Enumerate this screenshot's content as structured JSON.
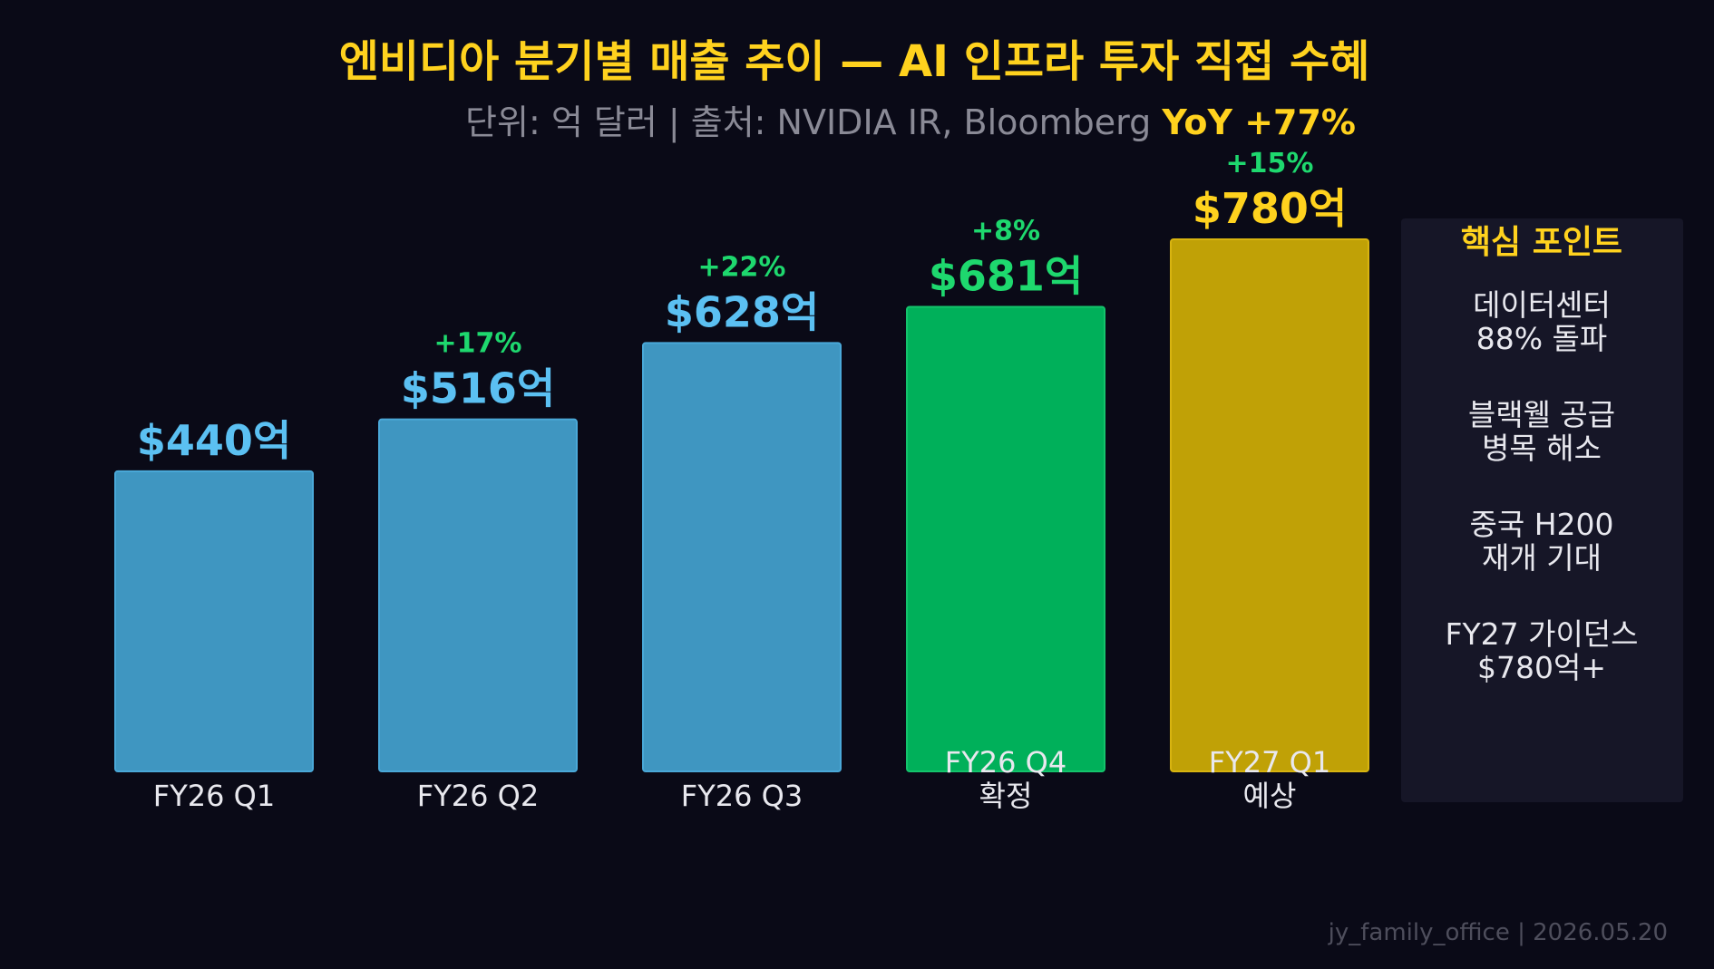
{
  "chart_data": {
    "type": "bar",
    "title": "엔비디아 분기별 매출 추이 — AI 인프라 투자 직접 수혜",
    "subtitle": "단위: 억 달러 | 출처: NVIDIA IR, Bloomberg",
    "yoy_label": "YoY +77%",
    "categories": [
      {
        "line1": "FY26 Q1",
        "line2": ""
      },
      {
        "line1": "FY26 Q2",
        "line2": ""
      },
      {
        "line1": "FY26 Q3",
        "line2": ""
      },
      {
        "line1": "FY26 Q4",
        "line2": "확정"
      },
      {
        "line1": "FY27 Q1",
        "line2": "예상"
      }
    ],
    "values": [
      440,
      516,
      628,
      681,
      780
    ],
    "value_labels": [
      "$440억",
      "$516억",
      "$628억",
      "$681억",
      "$780억"
    ],
    "growth_labels": [
      "",
      "+17%",
      "+22%",
      "+8%",
      "+15%"
    ],
    "ylim": [
      0,
      780
    ],
    "colors": {
      "bar_default": "#3f96c1",
      "bar_default_stroke": "#4aa8d8",
      "bar_confirmed": "#00b05a",
      "bar_confirmed_stroke": "#14c46c",
      "bar_forecast": "#c0a106",
      "bar_forecast_stroke": "#d8b410",
      "label_default": "#5bc0f2",
      "label_confirmed": "#1ed86e",
      "label_forecast": "#ffd21e",
      "growth": "#1ed86e",
      "title": "#ffd21e",
      "subtitle": "#8a8a96",
      "axis_text": "#e8e8ee",
      "background": "#0a0a17",
      "panel_bg": "#161627",
      "footer": "#4e4e5c"
    },
    "bar_styles": [
      "default",
      "default",
      "default",
      "confirmed",
      "forecast"
    ]
  },
  "panel": {
    "title": "핵심 포인트",
    "points": [
      {
        "line1": "데이터센터",
        "line2": "88% 돌파"
      },
      {
        "line1": "블랙웰 공급",
        "line2": "병목 해소"
      },
      {
        "line1": "중국 H200",
        "line2": "재개 기대"
      },
      {
        "line1": "FY27 가이던스",
        "line2": "$780억+"
      }
    ]
  },
  "footer": "jy_family_office | 2026.05.20"
}
